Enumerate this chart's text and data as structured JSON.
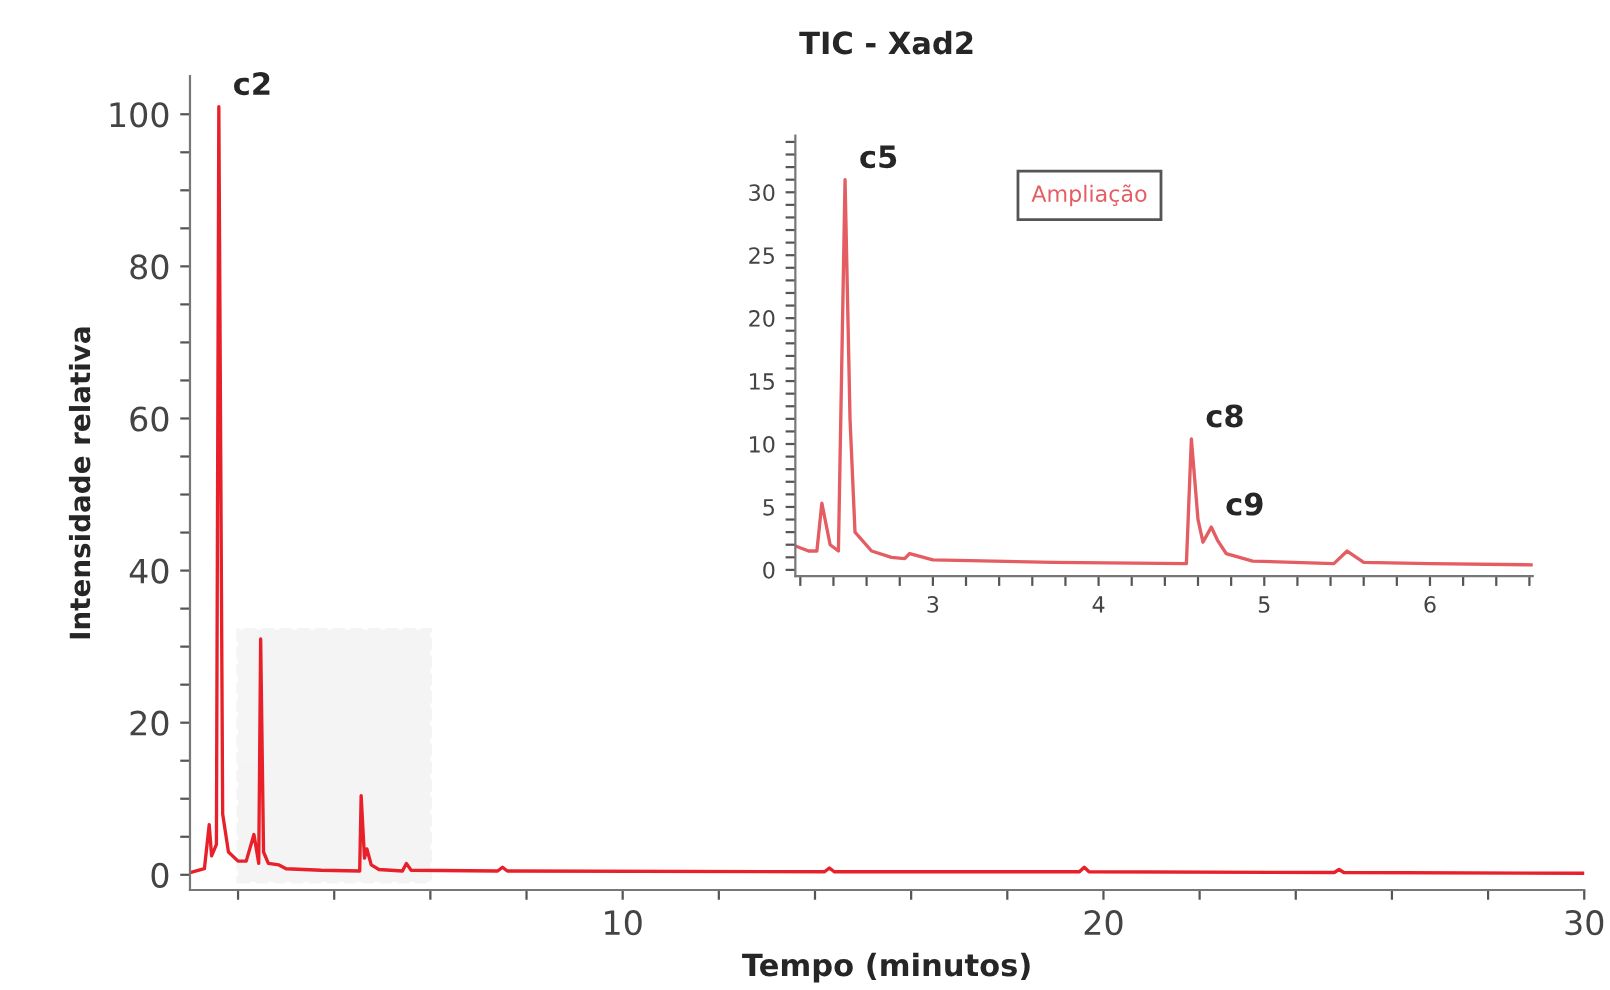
{
  "chart_data": [
    {
      "type": "line",
      "title": "TIC - Xad2",
      "xlabel": "Tempo (minutos)",
      "ylabel": "Intensidade relativa",
      "xlim": [
        1,
        30
      ],
      "ylim": [
        -2,
        105
      ],
      "xticks": [
        {
          "value": 2,
          "label": null
        },
        {
          "value": 4,
          "label": null
        },
        {
          "value": 6,
          "label": null
        },
        {
          "value": 8,
          "label": null
        },
        10,
        {
          "value": 12,
          "label": null
        },
        {
          "value": 14,
          "label": null
        },
        {
          "value": 16,
          "label": null
        },
        {
          "value": 18,
          "label": null
        },
        20,
        {
          "value": 22,
          "label": null
        },
        {
          "value": 24,
          "label": null
        },
        {
          "value": 26,
          "label": null
        },
        {
          "value": 28,
          "label": null
        },
        30
      ],
      "yticks": [
        0,
        {
          "value": 5,
          "label": null
        },
        {
          "value": 10,
          "label": null
        },
        {
          "value": 15,
          "label": null
        },
        20,
        {
          "value": 25,
          "label": null
        },
        {
          "value": 30,
          "label": null
        },
        {
          "value": 35,
          "label": null
        },
        40,
        {
          "value": 45,
          "label": null
        },
        {
          "value": 50,
          "label": null
        },
        {
          "value": 55,
          "label": null
        },
        60,
        {
          "value": 65,
          "label": null
        },
        {
          "value": 70,
          "label": null
        },
        {
          "value": 75,
          "label": null
        },
        80,
        {
          "value": 85,
          "label": null
        },
        {
          "value": 90,
          "label": null
        },
        {
          "value": 95,
          "label": null
        },
        100
      ],
      "series": [
        {
          "color": "#e8202a",
          "x": [
            1.0,
            1.3,
            1.4,
            1.45,
            1.55,
            1.6,
            1.68,
            1.8,
            2.0,
            2.17,
            2.33,
            2.43,
            2.47,
            2.53,
            2.63,
            2.85,
            3.0,
            3.73,
            4.53,
            4.56,
            4.63,
            4.68,
            4.77,
            4.93,
            5.42,
            5.5,
            5.6,
            7.4,
            7.5,
            7.6,
            14.2,
            14.3,
            14.4,
            19.5,
            19.6,
            19.7,
            24.8,
            24.9,
            25.0,
            30
          ],
          "values": [
            0.3,
            0.8,
            6.6,
            2.5,
            4,
            101,
            8,
            3,
            1.8,
            1.8,
            5.3,
            1.5,
            31,
            3,
            1.5,
            1.3,
            0.8,
            0.6,
            0.5,
            10.4,
            2.2,
            3.4,
            1.3,
            0.7,
            0.5,
            1.5,
            0.6,
            0.5,
            1.0,
            0.5,
            0.4,
            0.9,
            0.4,
            0.4,
            1.0,
            0.4,
            0.3,
            0.7,
            0.3,
            0.2
          ]
        }
      ],
      "annotations": [
        {
          "text": "c2",
          "x": 1.6,
          "y": 101
        }
      ],
      "bands": [
        {
          "axis": "x",
          "from": 2,
          "to": 6,
          "color": "#808080"
        }
      ],
      "grid": false,
      "legend": false
    },
    {
      "type": "line",
      "xlim": [
        2.17,
        6.62
      ],
      "ylim": [
        -0.5,
        34.5
      ],
      "xticks": [
        {
          "value": 2.2,
          "label": null
        },
        {
          "value": 2.4,
          "label": null
        },
        {
          "value": 2.6,
          "label": null
        },
        {
          "value": 2.8,
          "label": null
        },
        3,
        {
          "value": 3.2,
          "label": null
        },
        {
          "value": 3.4,
          "label": null
        },
        {
          "value": 3.6,
          "label": null
        },
        {
          "value": 3.8,
          "label": null
        },
        4,
        {
          "value": 4.2,
          "label": null
        },
        {
          "value": 4.4,
          "label": null
        },
        {
          "value": 4.6,
          "label": null
        },
        {
          "value": 4.8,
          "label": null
        },
        5,
        {
          "value": 5.2,
          "label": null
        },
        {
          "value": 5.4,
          "label": null
        },
        {
          "value": 5.6,
          "label": null
        },
        {
          "value": 5.8,
          "label": null
        },
        6,
        {
          "value": 6.2,
          "label": null
        },
        {
          "value": 6.4,
          "label": null
        },
        {
          "value": 6.6,
          "label": null
        }
      ],
      "yticks": [
        0,
        {
          "value": 1,
          "label": null
        },
        {
          "value": 2,
          "label": null
        },
        {
          "value": 3,
          "label": null
        },
        {
          "value": 4,
          "label": null
        },
        5,
        {
          "value": 6,
          "label": null
        },
        {
          "value": 7,
          "label": null
        },
        {
          "value": 8,
          "label": null
        },
        {
          "value": 9,
          "label": null
        },
        10,
        {
          "value": 11,
          "label": null
        },
        {
          "value": 12,
          "label": null
        },
        {
          "value": 13,
          "label": null
        },
        {
          "value": 14,
          "label": null
        },
        15,
        {
          "value": 16,
          "label": null
        },
        {
          "value": 17,
          "label": null
        },
        {
          "value": 18,
          "label": null
        },
        {
          "value": 19,
          "label": null
        },
        20,
        {
          "value": 21,
          "label": null
        },
        {
          "value": 22,
          "label": null
        },
        {
          "value": 23,
          "label": null
        },
        {
          "value": 24,
          "label": null
        },
        25,
        {
          "value": 26,
          "label": null
        },
        {
          "value": 27,
          "label": null
        },
        {
          "value": 28,
          "label": null
        },
        {
          "value": 29,
          "label": null
        },
        30,
        {
          "value": 31,
          "label": null
        },
        {
          "value": 32,
          "label": null
        },
        {
          "value": 33,
          "label": null
        },
        {
          "value": 34,
          "label": null
        }
      ],
      "series": [
        {
          "color": "#e35d62",
          "x": [
            2.17,
            2.25,
            2.3,
            2.33,
            2.38,
            2.43,
            2.47,
            2.5,
            2.53,
            2.63,
            2.75,
            2.83,
            2.86,
            3.0,
            3.73,
            4.53,
            4.56,
            4.6,
            4.63,
            4.68,
            4.72,
            4.77,
            4.93,
            5.42,
            5.5,
            5.6,
            6.0,
            6.62
          ],
          "values": [
            1.9,
            1.5,
            1.5,
            5.3,
            2.0,
            1.5,
            31,
            12,
            3,
            1.5,
            1.0,
            0.9,
            1.3,
            0.8,
            0.6,
            0.5,
            10.4,
            4,
            2.2,
            3.4,
            2.3,
            1.3,
            0.7,
            0.5,
            1.5,
            0.6,
            0.5,
            0.4
          ]
        }
      ],
      "annotations": [
        {
          "text": "c5",
          "x": 2.47,
          "y": 31
        },
        {
          "text": "c8",
          "x": 4.56,
          "y": 10.4
        },
        {
          "text": "c9",
          "x": 4.68,
          "y": 3.4
        },
        "Ampliação"
      ],
      "grid": false,
      "legend": false
    }
  ]
}
